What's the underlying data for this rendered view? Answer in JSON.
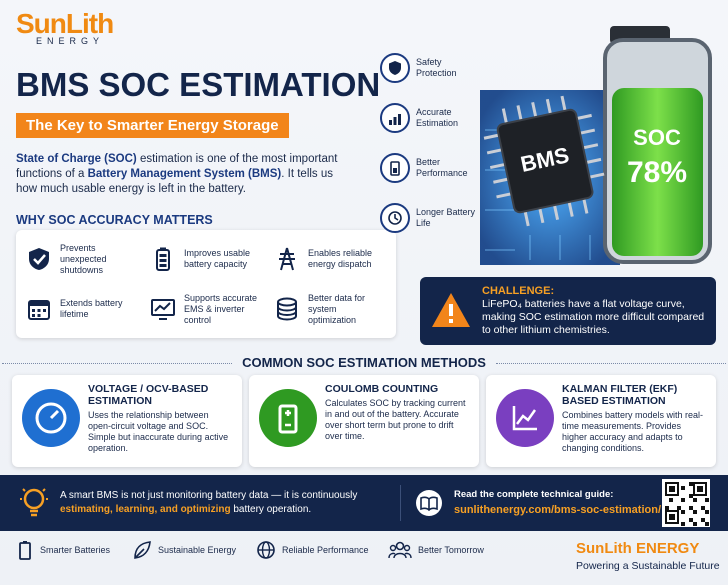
{
  "logo": {
    "name": "SunLith",
    "sub": "ENERGY"
  },
  "header": {
    "title": "BMS SOC ESTIMATION",
    "subtitle": "The Key to Smarter Energy Storage"
  },
  "intro": {
    "parts": [
      "State of Charge (SOC)",
      " estimation is one of the most important functions of a ",
      "Battery Management System (BMS)",
      ". It tells us how much usable energy is left in the battery."
    ]
  },
  "why": {
    "title": "WHY SOC ACCURACY MATTERS",
    "items": [
      "Prevents unexpected shutdowns",
      "Improves usable battery capacity",
      "Enables reliable energy dispatch",
      "Extends battery lifetime",
      "Supports accurate EMS & inverter control",
      "Better data for system optimization"
    ]
  },
  "features": [
    "Safety Protection",
    "Accurate Estimation",
    "Better Performance",
    "Longer Battery Life"
  ],
  "graphic": {
    "chip": "BMS",
    "soc_label": "SOC",
    "soc_value": "78%"
  },
  "challenge": {
    "title": "CHALLENGE:",
    "text": "LiFePO₄ batteries have a flat voltage curve, making SOC estimation more difficult compared to other lithium chemistries."
  },
  "methods": {
    "title": "COMMON SOC ESTIMATION METHODS",
    "items": [
      {
        "title": "VOLTAGE / OCV-BASED ESTIMATION",
        "text": "Uses the relationship between open-circuit voltage and SOC. Simple but inaccurate during active operation."
      },
      {
        "title": "COULOMB COUNTING",
        "text": "Calculates SOC by tracking current in and out of the battery. Accurate over short term but prone to drift over time."
      },
      {
        "title": "KALMAN FILTER (EKF) BASED ESTIMATION",
        "text": "Combines battery models with real-time measurements. Provides higher accuracy and adapts to changing conditions."
      }
    ]
  },
  "banner": {
    "parts": [
      "A smart BMS is not just monitoring battery data — it is continuously ",
      "estimating, learning, and optimizing",
      " battery operation."
    ],
    "guide_label": "Read the complete technical guide:",
    "guide_url": "sunlithenergy.com/bms-soc-estimation/"
  },
  "footer": {
    "items": [
      "Smarter Batteries",
      "Sustainable Energy",
      "Reliable Performance",
      "Better Tomorrow"
    ],
    "brand": "SunLith ENERGY",
    "tagline": "Powering a Sustainable Future"
  }
}
